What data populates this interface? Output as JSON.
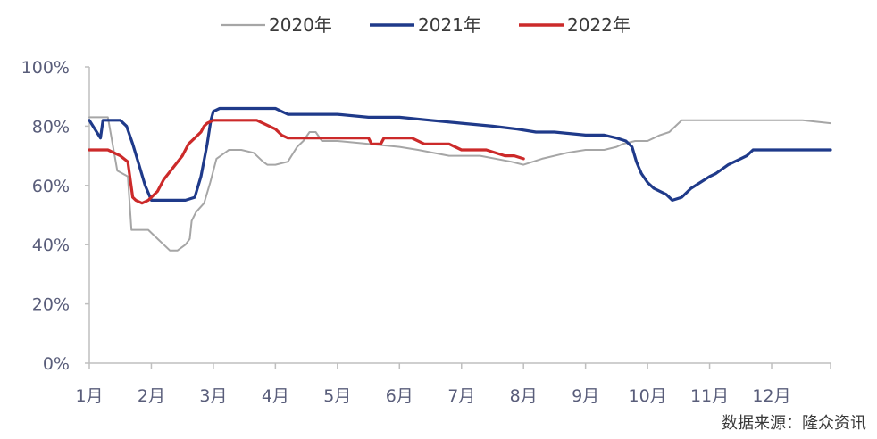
{
  "chart_data": {
    "type": "line",
    "title": "",
    "xlabel": "",
    "ylabel": "",
    "ylim": [
      0,
      100
    ],
    "y_ticks": [
      0,
      20,
      40,
      60,
      80,
      100
    ],
    "y_tick_labels": [
      "0%",
      "20%",
      "40%",
      "60%",
      "80%",
      "100%"
    ],
    "x_range": [
      1,
      12.95
    ],
    "x_ticks": [
      1,
      2,
      3,
      4,
      5,
      6,
      7,
      8,
      9,
      10,
      11,
      12
    ],
    "x_tick_labels": [
      "1月",
      "2月",
      "3月",
      "4月",
      "5月",
      "6月",
      "7月",
      "8月",
      "9月",
      "10月",
      "11月",
      "12月"
    ],
    "grid": false,
    "legend_position": "top-center",
    "source": "数据来源：隆众资讯",
    "series": [
      {
        "name": "2020年",
        "color": "#a6a6a6",
        "x": [
          1.0,
          1.15,
          1.3,
          1.45,
          1.62,
          1.68,
          1.69,
          1.95,
          2.1,
          2.3,
          2.42,
          2.55,
          2.62,
          2.65,
          2.72,
          2.85,
          2.95,
          3.05,
          3.25,
          3.45,
          3.65,
          3.8,
          3.87,
          4.0,
          4.2,
          4.35,
          4.45,
          4.55,
          4.65,
          4.75,
          4.82,
          4.9,
          5.0,
          5.5,
          6.0,
          6.3,
          6.8,
          7.3,
          7.8,
          8.0,
          8.3,
          8.7,
          9.0,
          9.3,
          9.5,
          9.6,
          9.8,
          10.0,
          10.1,
          10.2,
          10.35,
          10.45,
          10.55,
          11.0,
          12.0,
          12.5,
          12.95
        ],
        "y": [
          83,
          83,
          83,
          65,
          63,
          45,
          45,
          45,
          42,
          38,
          38,
          40,
          42,
          48,
          51,
          54,
          61,
          69,
          72,
          72,
          71,
          68,
          67,
          67,
          68,
          73,
          75,
          78,
          78,
          75,
          75,
          75,
          75,
          74,
          73,
          72,
          70,
          70,
          68,
          67,
          69,
          71,
          72,
          72,
          73,
          74,
          75,
          75,
          76,
          77,
          78,
          80,
          82,
          82,
          82,
          82,
          81
        ]
      },
      {
        "name": "2021年",
        "color": "#1f3a8a",
        "x": [
          1.0,
          1.12,
          1.18,
          1.22,
          1.3,
          1.5,
          1.6,
          1.7,
          1.8,
          1.9,
          2.0,
          2.25,
          2.55,
          2.7,
          2.8,
          2.9,
          2.96,
          3.0,
          3.1,
          3.3,
          3.5,
          3.8,
          4.0,
          4.1,
          4.2,
          4.5,
          5.0,
          5.5,
          6.0,
          6.5,
          7.0,
          7.5,
          7.9,
          8.2,
          8.5,
          9.0,
          9.3,
          9.5,
          9.65,
          9.75,
          9.82,
          9.9,
          10.0,
          10.1,
          10.2,
          10.3,
          10.4,
          10.55,
          10.7,
          10.85,
          11.0,
          11.1,
          11.3,
          11.5,
          11.6,
          11.7,
          12.0,
          12.95
        ],
        "y": [
          82,
          78,
          76,
          82,
          82,
          82,
          80,
          74,
          67,
          60,
          55,
          55,
          55,
          56,
          63,
          74,
          82,
          85,
          86,
          86,
          86,
          86,
          86,
          85,
          84,
          84,
          84,
          83,
          83,
          82,
          81,
          80,
          79,
          78,
          78,
          77,
          77,
          76,
          75,
          73,
          68,
          64,
          61,
          59,
          58,
          57,
          55,
          56,
          59,
          61,
          63,
          64,
          67,
          69,
          70,
          72,
          72,
          72
        ]
      },
      {
        "name": "2022年",
        "color": "#cc2a2a",
        "x": [
          1.0,
          1.3,
          1.5,
          1.62,
          1.7,
          1.75,
          1.85,
          1.95,
          2.0,
          2.1,
          2.2,
          2.35,
          2.5,
          2.6,
          2.7,
          2.8,
          2.85,
          2.9,
          3.0,
          3.3,
          3.7,
          4.0,
          4.1,
          4.2,
          4.6,
          5.0,
          5.5,
          5.55,
          5.7,
          5.75,
          6.0,
          6.2,
          6.4,
          6.8,
          7.0,
          7.4,
          7.7,
          7.85,
          8.0
        ],
        "y": [
          72,
          72,
          70,
          68,
          56,
          55,
          54,
          55,
          56,
          58,
          62,
          66,
          70,
          74,
          76,
          78,
          80,
          81,
          82,
          82,
          82,
          79,
          77,
          76,
          76,
          76,
          76,
          74,
          74,
          76,
          76,
          76,
          74,
          74,
          72,
          72,
          70,
          70,
          69
        ]
      }
    ]
  }
}
